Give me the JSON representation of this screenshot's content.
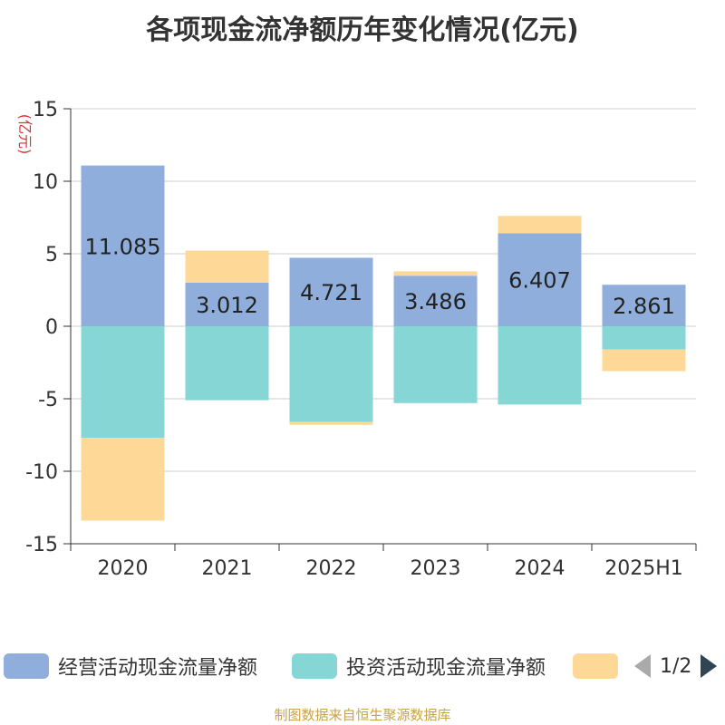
{
  "title": "各项现金流净额历年变化情况(亿元)",
  "y_unit": "(亿元)",
  "legend": {
    "items": [
      {
        "label": "经营活动现金流量净额",
        "color": "#8faedc"
      },
      {
        "label": "投资活动现金流量净额",
        "color": "#86d6d6"
      },
      {
        "label": "",
        "color": "#fdd896"
      }
    ],
    "page_indicator": "1/2"
  },
  "source": "制图数据来自恒生聚源数据库",
  "chart_data": {
    "type": "bar",
    "stacked": true,
    "categories": [
      "2020",
      "2021",
      "2022",
      "2023",
      "2024",
      "2025H1"
    ],
    "series": [
      {
        "name": "经营活动现金流量净额",
        "color": "#8faedc",
        "values": [
          11.085,
          3.012,
          4.721,
          3.486,
          6.407,
          2.861
        ],
        "labels": [
          "11.085",
          "3.012",
          "4.721",
          "3.486",
          "6.407",
          "2.861"
        ]
      },
      {
        "name": "投资活动现金流量净额",
        "color": "#86d6d6",
        "values": [
          -7.7,
          -5.1,
          -6.6,
          -5.3,
          -5.4,
          -1.6
        ]
      },
      {
        "color": "#fdd896",
        "values": [
          -5.7,
          2.2,
          -0.2,
          0.3,
          1.2,
          -1.5
        ]
      }
    ],
    "ylim": [
      -15,
      15
    ],
    "yticks": [
      -15,
      -10,
      -5,
      0,
      5,
      10,
      15
    ],
    "grid": true
  }
}
